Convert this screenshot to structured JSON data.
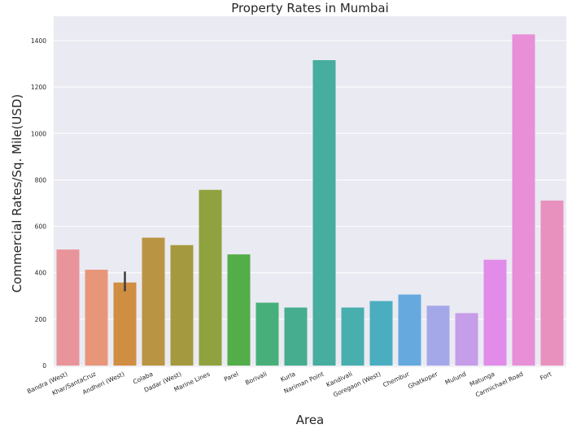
{
  "chart_data": {
    "type": "bar",
    "title": "Property Rates in Mumbai",
    "xlabel": "Area",
    "ylabel": "Commercial Rates/Sq. Mile(USD)",
    "ylim": [
      0,
      1500
    ],
    "yticks": [
      0,
      200,
      400,
      600,
      800,
      1000,
      1200,
      1400
    ],
    "grid": true,
    "categories": [
      "Bandra (West)",
      "Khar/SantaCruz",
      "Andheri (West)",
      "Colaba",
      "Dadar (West)",
      "Marine Lines",
      "Parel",
      "Borivali",
      "Kurla",
      "Nariman Point",
      "Kandivali",
      "Goregaon (West)",
      "Chembur",
      "Ghatkoper",
      "Mulund",
      "Matunga",
      "Carmichael Road",
      "Fort"
    ],
    "values": [
      500,
      413,
      358,
      551,
      519,
      757,
      479,
      271,
      250,
      1316,
      250,
      278,
      306,
      258,
      226,
      456,
      1427,
      711
    ],
    "error": {
      "category": "Andheri (West)",
      "low": 320,
      "high": 405
    },
    "colors": [
      "#e8949a",
      "#e8967a",
      "#d08e42",
      "#b99442",
      "#a5993f",
      "#8fa23f",
      "#53ad48",
      "#47b07a",
      "#46ad8e",
      "#47ad9f",
      "#48aeae",
      "#4aaec0",
      "#66a9df",
      "#a5a8e8",
      "#c69de8",
      "#e08ce8",
      "#e88fd8",
      "#e891be"
    ]
  }
}
